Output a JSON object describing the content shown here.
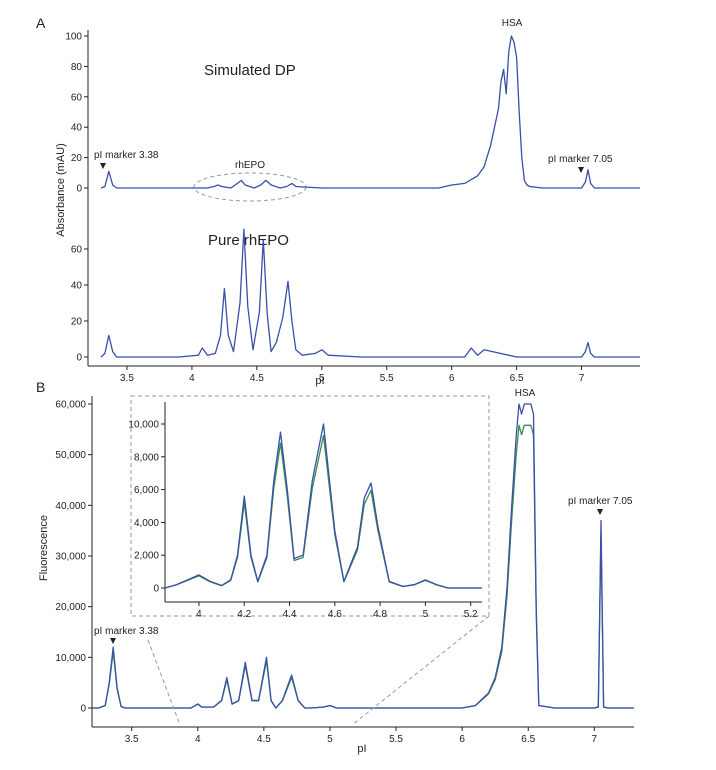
{
  "colors": {
    "trace": "#3a4fa8",
    "trace2": "#3c8a52",
    "axis": "#222222",
    "dashed": "#9a9a9a"
  },
  "chart_data": [
    {
      "panel": "A",
      "type": "line",
      "xlabel": "pI",
      "ylabel": "Absorbance (mAU)",
      "xlim": [
        3.2,
        7.45
      ],
      "xticks": [
        "3.5",
        "4",
        "4.5",
        "5",
        "5.5",
        "6",
        "6.5",
        "7"
      ],
      "series": [
        {
          "name": "Simulated DP",
          "yticks": [
            "0",
            "20",
            "40",
            "60",
            "80",
            "100"
          ],
          "ylim": [
            0,
            100
          ],
          "x": [
            3.3,
            3.33,
            3.36,
            3.39,
            3.42,
            3.6,
            3.8,
            4.0,
            4.12,
            4.17,
            4.2,
            4.23,
            4.3,
            4.35,
            4.38,
            4.41,
            4.48,
            4.53,
            4.57,
            4.61,
            4.68,
            4.73,
            4.77,
            4.8,
            5.0,
            5.3,
            5.6,
            5.9,
            6.0,
            6.1,
            6.2,
            6.25,
            6.3,
            6.33,
            6.36,
            6.38,
            6.4,
            6.42,
            6.44,
            6.46,
            6.48,
            6.5,
            6.52,
            6.54,
            6.56,
            6.58,
            6.6,
            6.7,
            6.9,
            7.0,
            7.03,
            7.05,
            7.07,
            7.1,
            7.3,
            7.45
          ],
          "y": [
            0,
            1,
            11,
            2,
            0,
            0,
            0,
            0,
            0,
            1,
            2,
            1,
            0,
            3,
            5,
            2,
            0,
            2,
            5,
            2,
            0,
            1,
            3,
            1,
            0,
            0,
            0,
            0,
            2,
            3,
            8,
            14,
            28,
            40,
            52,
            70,
            78,
            62,
            90,
            100,
            96,
            86,
            50,
            20,
            5,
            2,
            1,
            0,
            0,
            0,
            4,
            12,
            3,
            0,
            0,
            0
          ]
        },
        {
          "name": "Pure rhEPO",
          "yticks": [
            "0",
            "20",
            "40",
            "60"
          ],
          "ylim": [
            0,
            80
          ],
          "x": [
            3.3,
            3.33,
            3.36,
            3.39,
            3.42,
            3.6,
            3.9,
            4.05,
            4.08,
            4.12,
            4.18,
            4.22,
            4.25,
            4.28,
            4.32,
            4.37,
            4.4,
            4.43,
            4.47,
            4.52,
            4.55,
            4.58,
            4.61,
            4.65,
            4.7,
            4.74,
            4.77,
            4.8,
            4.85,
            4.95,
            5.0,
            5.05,
            5.3,
            5.8,
            6.1,
            6.15,
            6.2,
            6.25,
            6.5,
            7.0,
            7.03,
            7.05,
            7.07,
            7.1,
            7.3,
            7.45
          ],
          "y": [
            0,
            2,
            12,
            3,
            0,
            0,
            0,
            1,
            5,
            1,
            2,
            12,
            38,
            12,
            3,
            30,
            71,
            28,
            4,
            25,
            65,
            24,
            3,
            8,
            22,
            42,
            20,
            4,
            1,
            2,
            4,
            1,
            0,
            0,
            0,
            5,
            1,
            4,
            0,
            0,
            3,
            8,
            2,
            0,
            0,
            0
          ]
        }
      ],
      "annotations": [
        "pI marker 3.38",
        "rhEPO",
        "HSA",
        "pI marker 7.05"
      ]
    },
    {
      "panel": "B",
      "type": "line",
      "xlabel": "pI",
      "ylabel": "Fluorescence",
      "xlim": [
        3.2,
        7.3
      ],
      "ylim": [
        -2000,
        62000
      ],
      "xticks": [
        "3.5",
        "4",
        "4.5",
        "5",
        "5.5",
        "6",
        "6.5",
        "7"
      ],
      "yticks": [
        "0",
        "10,000",
        "20,000",
        "30,000",
        "40,000",
        "50,000",
        "60,000"
      ],
      "x": [
        3.2,
        3.25,
        3.3,
        3.33,
        3.36,
        3.39,
        3.42,
        3.45,
        3.7,
        3.95,
        4.0,
        4.03,
        4.12,
        4.18,
        4.22,
        4.26,
        4.31,
        4.36,
        4.41,
        4.46,
        4.52,
        4.555,
        4.59,
        4.64,
        4.71,
        4.76,
        4.81,
        4.86,
        4.95,
        5.0,
        5.05,
        5.5,
        6.0,
        6.1,
        6.2,
        6.25,
        6.3,
        6.34,
        6.37,
        6.39,
        6.41,
        6.43,
        6.45,
        6.47,
        6.5,
        6.52,
        6.54,
        6.56,
        6.58,
        6.7,
        6.95,
        7.0,
        7.03,
        7.05,
        7.07,
        7.1,
        7.3
      ],
      "y": [
        0,
        0,
        500,
        5000,
        12000,
        4000,
        300,
        0,
        0,
        0,
        800,
        200,
        200,
        1500,
        6000,
        800,
        1500,
        9000,
        1500,
        1500,
        10000,
        1500,
        0,
        1500,
        6500,
        1500,
        0,
        0,
        200,
        500,
        0,
        0,
        0,
        500,
        3000,
        6000,
        12000,
        24000,
        38000,
        46000,
        54000,
        60000,
        58000,
        60000,
        60000,
        60000,
        58000,
        20000,
        500,
        0,
        0,
        0,
        200,
        37000,
        200,
        0,
        0
      ],
      "annotations": [
        "HSA",
        "pI marker 3.38",
        "pI marker 7.05"
      ],
      "inset": {
        "xlim": [
          3.85,
          5.25
        ],
        "ylim": [
          -400,
          11500
        ],
        "xticks": [
          "4",
          "4.2",
          "4.4",
          "4.6",
          "4.8",
          "5",
          "5.2"
        ],
        "yticks": [
          "0",
          "2,000",
          "4,000",
          "6,000",
          "8,000",
          "10,000"
        ],
        "x": [
          3.85,
          3.9,
          3.95,
          4.0,
          4.05,
          4.1,
          4.14,
          4.17,
          4.2,
          4.23,
          4.26,
          4.3,
          4.33,
          4.36,
          4.39,
          4.42,
          4.46,
          4.5,
          4.55,
          4.6,
          4.64,
          4.7,
          4.73,
          4.76,
          4.79,
          4.84,
          4.9,
          4.95,
          5.0,
          5.05,
          5.1,
          5.25
        ],
        "y": [
          0,
          200,
          500,
          800,
          400,
          150,
          500,
          2000,
          5600,
          2000,
          400,
          2000,
          6500,
          9500,
          6000,
          1800,
          2000,
          6500,
          10000,
          3500,
          400,
          2500,
          5500,
          6400,
          3800,
          400,
          100,
          200,
          500,
          200,
          0,
          0
        ]
      }
    }
  ],
  "labels": {
    "panel_a": "A",
    "panel_b": "B",
    "simulated": "Simulated DP",
    "pure": "Pure rhEPO",
    "ylabel_a": "Absorbance (mAU)",
    "xlabel_a": "pI",
    "ylabel_b": "Fluorescence",
    "xlabel_b": "pI",
    "hsa_a": "HSA",
    "hsa_b": "HSA",
    "marker338_a": "pI marker 3.38",
    "marker705_a": "pI marker 7.05",
    "rhepo": "rhEPO",
    "marker338_b": "pI marker 3.38",
    "marker705_b": "pI marker 7.05"
  }
}
